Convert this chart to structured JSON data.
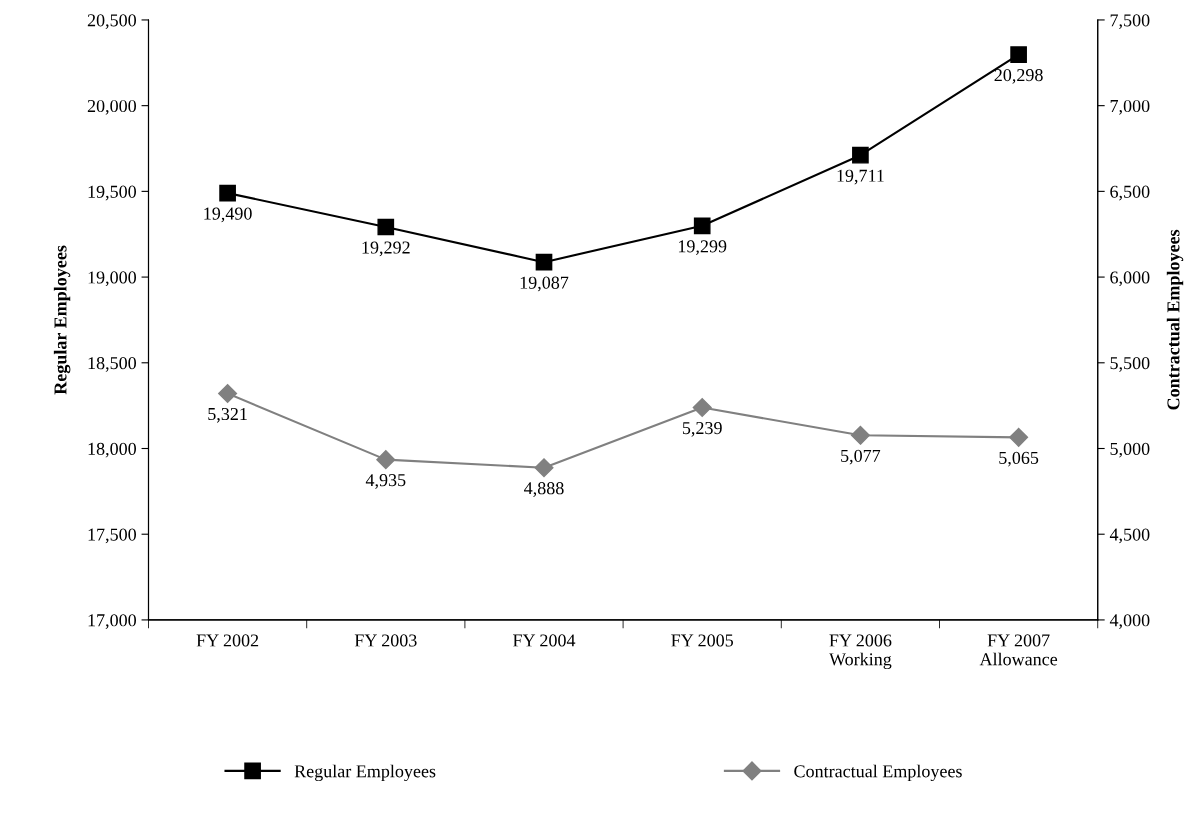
{
  "chart_data": {
    "type": "line",
    "categories": [
      "FY 2002",
      "FY 2003",
      "FY 2004",
      "FY 2005",
      "FY 2006\nWorking",
      "FY 2007\nAllowance"
    ],
    "series": [
      {
        "name": "Regular Employees",
        "color": "#000000",
        "marker": "square",
        "values": [
          19490,
          19292,
          19087,
          19299,
          19711,
          20298
        ],
        "value_labels": [
          "19,490",
          "19,292",
          "19,087",
          "19,299",
          "19,711",
          "20,298"
        ]
      },
      {
        "name": "Contractual Employees",
        "color": "#808080",
        "marker": "diamond",
        "axis": "y2",
        "values": [
          5321,
          4935,
          4888,
          5239,
          5077,
          5065
        ],
        "value_labels": [
          "5,321",
          "4,935",
          "4,888",
          "5,239",
          "5,077",
          "5,065"
        ]
      }
    ],
    "ylabel": "Regular Employees",
    "y2label": "Contractual Employees",
    "ylim": [
      17000,
      20500
    ],
    "yticks": [
      {
        "value": 17000,
        "label": "17,000"
      },
      {
        "value": 17500,
        "label": "17,500"
      },
      {
        "value": 18000,
        "label": "18,000"
      },
      {
        "value": 18500,
        "label": "18,500"
      },
      {
        "value": 19000,
        "label": "19,000"
      },
      {
        "value": 19500,
        "label": "19,500"
      },
      {
        "value": 20000,
        "label": "20,000"
      },
      {
        "value": 20500,
        "label": "20,500"
      }
    ],
    "y2lim": [
      4000,
      7500
    ],
    "y2ticks": [
      {
        "value": 4000,
        "label": "4,000"
      },
      {
        "value": 4500,
        "label": "4,500"
      },
      {
        "value": 5000,
        "label": "5,000"
      },
      {
        "value": 5500,
        "label": "5,500"
      },
      {
        "value": 6000,
        "label": "6,000"
      },
      {
        "value": 6500,
        "label": "6,500"
      },
      {
        "value": 7000,
        "label": "7,000"
      },
      {
        "value": 7500,
        "label": "7,500"
      }
    ],
    "grid": false,
    "legend": "bottom",
    "line_style": "solid"
  }
}
